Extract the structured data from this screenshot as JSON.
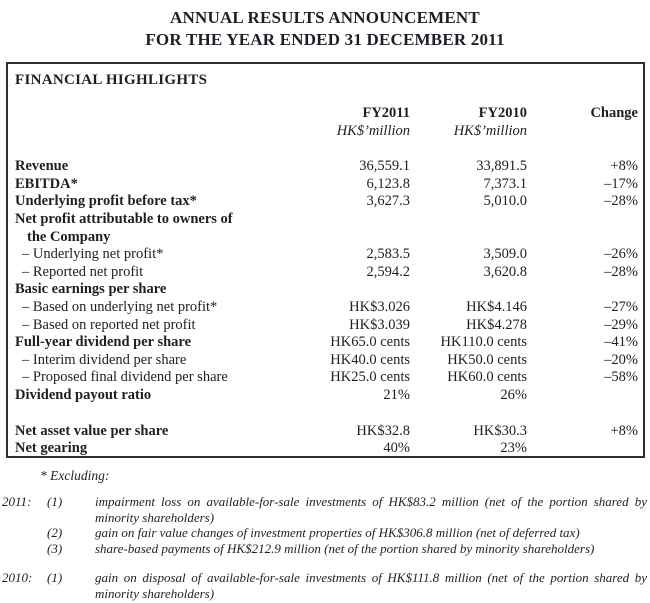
{
  "title": {
    "line1": "ANNUAL RESULTS ANNOUNCEMENT",
    "line2": "FOR THE YEAR ENDED 31 DECEMBER 2011"
  },
  "colors": {
    "ink": "#1e1f26",
    "panel_border": "#2e2e34",
    "background": "#ffffff"
  },
  "panel": {
    "heading": "FINANCIAL HIGHLIGHTS",
    "columns": {
      "fy2011": {
        "label": "FY2011",
        "unit": "HK$’million"
      },
      "fy2010": {
        "label": "FY2010",
        "unit": "HK$’million"
      },
      "change": {
        "label": "Change"
      }
    },
    "rows": [
      {
        "style": "bold",
        "label": "Revenue",
        "fy2011": "36,559.1",
        "fy2010": "33,891.5",
        "change": "+8%"
      },
      {
        "style": "bold",
        "label": "EBITDA*",
        "fy2011": "6,123.8",
        "fy2010": "7,373.1",
        "change": "–17%"
      },
      {
        "style": "bold",
        "label": "Underlying profit before tax*",
        "fy2011": "3,627.3",
        "fy2010": "5,010.0",
        "change": "–28%"
      },
      {
        "style": "bold",
        "label": "Net profit attributable to owners of",
        "label2": "the Company",
        "fy2011": "",
        "fy2010": "",
        "change": ""
      },
      {
        "style": "sub",
        "label": "– Underlying net profit*",
        "fy2011": "2,583.5",
        "fy2010": "3,509.0",
        "change": "–26%"
      },
      {
        "style": "sub",
        "label": "– Reported net profit",
        "fy2011": "2,594.2",
        "fy2010": "3,620.8",
        "change": "–28%"
      },
      {
        "style": "bold",
        "label": "Basic earnings per share",
        "fy2011": "",
        "fy2010": "",
        "change": ""
      },
      {
        "style": "sub",
        "label": "– Based on underlying net profit*",
        "fy2011": "HK$3.026",
        "fy2010": "HK$4.146",
        "change": "–27%"
      },
      {
        "style": "sub",
        "label": "– Based on reported net profit",
        "fy2011": "HK$3.039",
        "fy2010": "HK$4.278",
        "change": "–29%"
      },
      {
        "style": "bold",
        "label": "Full-year dividend per share",
        "fy2011": "HK65.0 cents",
        "fy2010": "HK110.0 cents",
        "change": "–41%"
      },
      {
        "style": "sub",
        "label": "– Interim dividend per share",
        "fy2011": "HK40.0 cents",
        "fy2010": "HK50.0 cents",
        "change": "–20%"
      },
      {
        "style": "sub",
        "label": "– Proposed final dividend per share",
        "fy2011": "HK25.0 cents",
        "fy2010": "HK60.0 cents",
        "change": "–58%"
      },
      {
        "style": "bold",
        "label": "Dividend payout ratio",
        "fy2011": "21%",
        "fy2010": "26%",
        "change": ""
      },
      {
        "spacer": true
      },
      {
        "style": "bold",
        "label": "Net asset value per share",
        "fy2011": "HK$32.8",
        "fy2010": "HK$30.3",
        "change": "+8%"
      },
      {
        "style": "bold",
        "label": "Net gearing",
        "fy2011": "40%",
        "fy2010": "23%",
        "change": ""
      }
    ]
  },
  "footnotes": {
    "excluding": "* Excluding:",
    "groups": [
      {
        "year": "2011:",
        "items": [
          {
            "num": "(1)",
            "text": "impairment loss on available-for-sale investments of HK$83.2 million (net of the portion shared by minority shareholders)"
          },
          {
            "num": "(2)",
            "text": "gain on fair value changes of investment properties of HK$306.8 million (net of deferred tax)"
          },
          {
            "num": "(3)",
            "text": "share-based payments of HK$212.9 million (net of the portion shared by minority shareholders)"
          }
        ]
      },
      {
        "year": "2010:",
        "items": [
          {
            "num": "(1)",
            "text": "gain on disposal of available-for-sale investments of HK$111.8 million (net of the portion shared by minority shareholders)"
          }
        ]
      }
    ]
  }
}
